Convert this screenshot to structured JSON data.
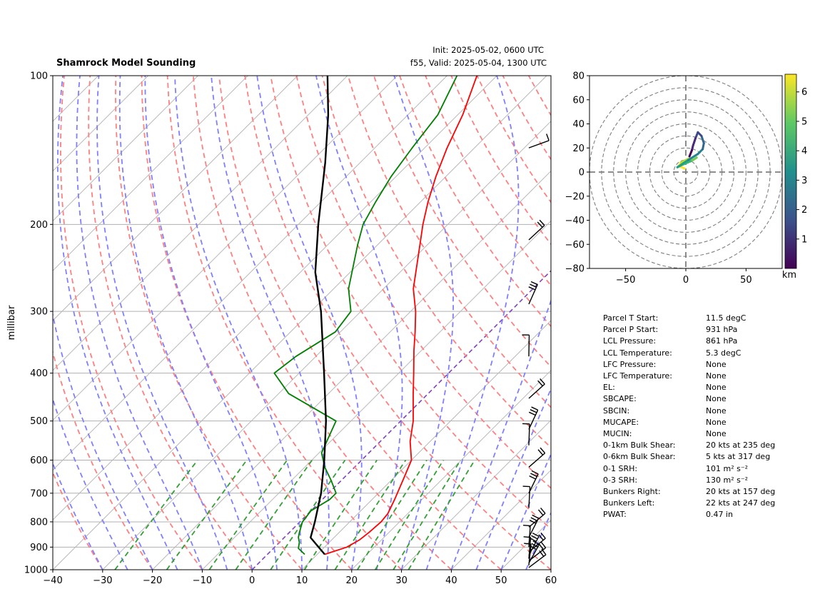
{
  "title": "Shamrock Model Sounding",
  "init_text": "Init: 2025-05-02, 0600 UTC",
  "valid_text": "f55, Valid: 2025-05-04, 1300 UTC",
  "colors": {
    "temperature": "#ff0000",
    "dewpoint": "#008000",
    "parcel": "#000000",
    "dry_adiabat": "#ff8080",
    "moist_adiabat": "#8080ff",
    "mixing_ratio": "#33a033",
    "isotherm_zero": "#8040c0"
  },
  "chart_data": [
    {
      "type": "line",
      "name": "skew-t",
      "ylabel": "millibar",
      "xlabel": "",
      "y_scale": "log",
      "xlim": [
        -40,
        60
      ],
      "ylim": [
        1000,
        100
      ],
      "x_ticks": [
        "−40",
        "−30",
        "−20",
        "−10",
        "0",
        "10",
        "20",
        "30",
        "40",
        "50",
        "60"
      ],
      "y_ticks": [
        "1000",
        "900",
        "800",
        "700",
        "600",
        "500",
        "400",
        "300",
        "200",
        "100"
      ],
      "grid": true,
      "series": [
        {
          "key": "temperature",
          "values": [
            [
              931,
              11.5
            ],
            [
              900,
              14.5
            ],
            [
              870,
              15.6
            ],
            [
              840,
              16.0
            ],
            [
              800,
              16.3
            ],
            [
              770,
              16.0
            ],
            [
              720,
              14.5
            ],
            [
              650,
              12.0
            ],
            [
              600,
              10.0
            ],
            [
              550,
              6.0
            ],
            [
              500,
              2.5
            ],
            [
              440,
              -3.0
            ],
            [
              400,
              -7.0
            ],
            [
              360,
              -11.5
            ],
            [
              330,
              -15.0
            ],
            [
              300,
              -19.0
            ],
            [
              270,
              -24.0
            ],
            [
              220,
              -31.5
            ],
            [
              200,
              -35.0
            ],
            [
              180,
              -38.5
            ],
            [
              160,
              -42.0
            ],
            [
              140,
              -45.5
            ],
            [
              120,
              -49.0
            ],
            [
              100,
              -54.0
            ]
          ]
        },
        {
          "key": "dewpoint",
          "values": [
            [
              931,
              7.5
            ],
            [
              905,
              5.0
            ],
            [
              880,
              4.0
            ],
            [
              860,
              2.8
            ],
            [
              840,
              2.0
            ],
            [
              800,
              0.5
            ],
            [
              760,
              0.0
            ],
            [
              720,
              1.5
            ],
            [
              700,
              1.5
            ],
            [
              660,
              -2.0
            ],
            [
              620,
              -6.0
            ],
            [
              580,
              -9.5
            ],
            [
              500,
              -13.0
            ],
            [
              440,
              -28.0
            ],
            [
              400,
              -35.0
            ],
            [
              370,
              -34.0
            ],
            [
              330,
              -31.0
            ],
            [
              300,
              -32.0
            ],
            [
              270,
              -37.0
            ],
            [
              220,
              -44.0
            ],
            [
              200,
              -47.0
            ],
            [
              180,
              -49.0
            ],
            [
              160,
              -51.0
            ],
            [
              140,
              -52.5
            ],
            [
              120,
              -54.0
            ],
            [
              100,
              -58.0
            ]
          ]
        },
        {
          "key": "parcel",
          "values": [
            [
              931,
              11.5
            ],
            [
              861,
              5.3
            ],
            [
              800,
              3.0
            ],
            [
              700,
              -1.5
            ],
            [
              600,
              -7.5
            ],
            [
              500,
              -15.0
            ],
            [
              400,
              -25.0
            ],
            [
              300,
              -38.0
            ],
            [
              250,
              -47.0
            ],
            [
              200,
              -56.0
            ],
            [
              150,
              -67.0
            ],
            [
              120,
              -76.0
            ],
            [
              100,
              -84.0
            ]
          ]
        }
      ]
    },
    {
      "type": "line",
      "name": "hodograph",
      "xlim": [
        -80,
        80
      ],
      "ylim": [
        -80,
        80
      ],
      "x_ticks": [
        "−50",
        "0",
        "50"
      ],
      "y_ticks": [
        "80",
        "60",
        "40",
        "20",
        "0",
        "−20",
        "−40",
        "−60",
        "−80"
      ],
      "colorbar_ticks": [
        "1",
        "2",
        "3",
        "4",
        "5",
        "6"
      ],
      "colorbar_label": "km",
      "range_rings": [
        10,
        20,
        30,
        40,
        50,
        60,
        70,
        80
      ],
      "values": [
        [
          -1,
          3
        ],
        [
          -6,
          5
        ],
        [
          -4,
          8
        ],
        [
          2,
          11
        ],
        [
          6,
          10
        ],
        [
          9,
          12
        ],
        [
          4,
          9
        ],
        [
          -3,
          6
        ],
        [
          -7,
          4
        ],
        [
          -4,
          6
        ],
        [
          2,
          10
        ],
        [
          10,
          15
        ],
        [
          14,
          19
        ],
        [
          15,
          24
        ],
        [
          13,
          30
        ],
        [
          10,
          33
        ],
        [
          8,
          28
        ],
        [
          6,
          22
        ],
        [
          5,
          18
        ],
        [
          3,
          13
        ]
      ]
    }
  ],
  "stats": [
    {
      "label": "Parcel T Start:",
      "value": "11.5 degC"
    },
    {
      "label": "Parcel P Start:",
      "value": "931 hPa"
    },
    {
      "label": "LCL Pressure:",
      "value": "861 hPa"
    },
    {
      "label": "LCL Temperature:",
      "value": "5.3 degC"
    },
    {
      "label": "LFC Pressure:",
      "value": "None"
    },
    {
      "label": "LFC Temperature:",
      "value": "None"
    },
    {
      "label": "EL:",
      "value": "None"
    },
    {
      "label": "SBCAPE:",
      "value": "None"
    },
    {
      "label": "SBCIN:",
      "value": "None"
    },
    {
      "label": "MUCAPE:",
      "value": "None"
    },
    {
      "label": "MUCIN:",
      "value": "None"
    },
    {
      "label": "0-1km Bulk Shear:",
      "value": "20 kts at 235 deg"
    },
    {
      "label": "0-6km Bulk Shear:",
      "value": "5 kts at 317 deg"
    },
    {
      "label": "0-1 SRH:",
      "value": "101 m² s⁻²"
    },
    {
      "label": "0-3 SRH:",
      "value": "130 m² s⁻²"
    },
    {
      "label": "Bunkers Right:",
      "value": "20 kts at 157 deg"
    },
    {
      "label": "Bunkers Left:",
      "value": "22 kts at 247 deg"
    },
    {
      "label": "PWAT:",
      "value": "0.47 in"
    }
  ]
}
